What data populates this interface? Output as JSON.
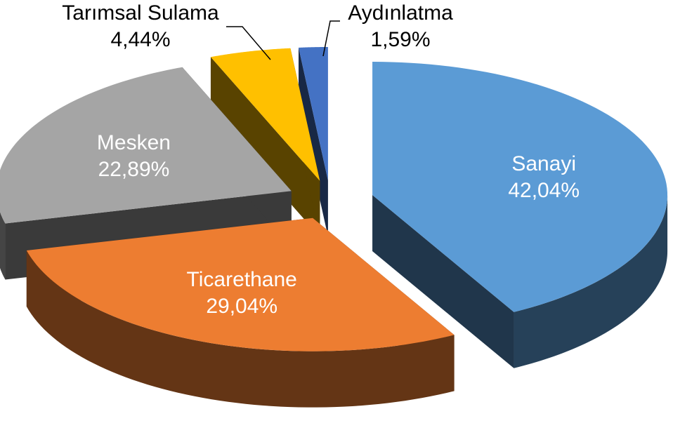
{
  "chart_data": {
    "type": "pie3d",
    "categories": [
      "Sanayi",
      "Ticarethane",
      "Mesken",
      "Tarımsal Sulama",
      "Aydınlatma"
    ],
    "values": [
      42.04,
      29.04,
      22.89,
      4.44,
      1.59
    ],
    "value_labels": [
      "42,04%",
      "29,04%",
      "22,89%",
      "4,44%",
      "1,59%"
    ],
    "colors": [
      "#5b9bd5",
      "#ed7d31",
      "#a5a5a5",
      "#ffc000",
      "#4472c4"
    ]
  }
}
